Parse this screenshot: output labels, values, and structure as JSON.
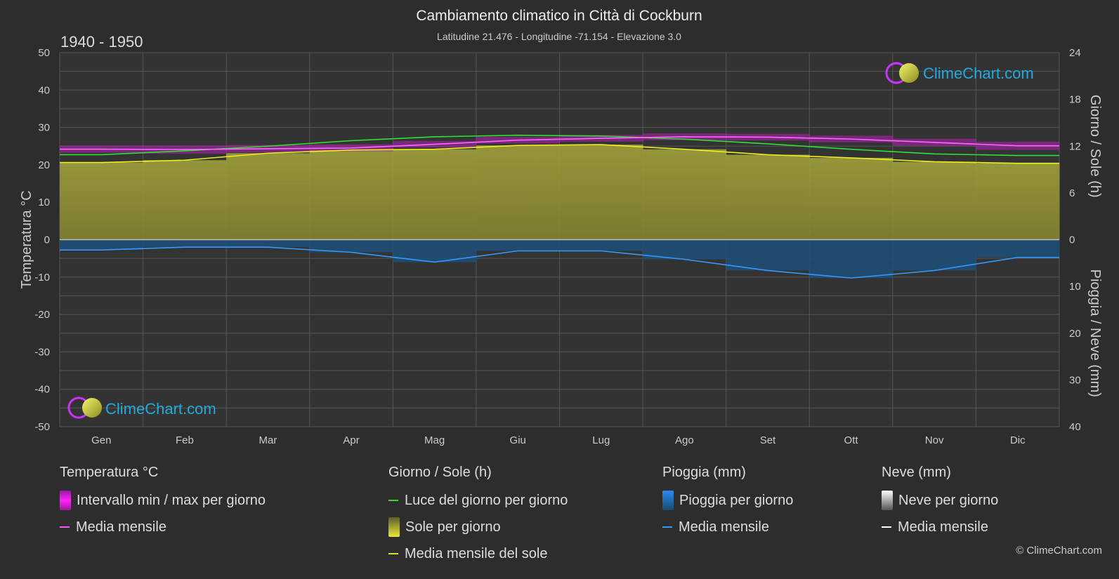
{
  "header": {
    "title": "Cambiamento climatico in Città di Cockburn",
    "subtitle": "Latitudine 21.476 - Longitudine -71.154 - Elevazione 3.0",
    "period": "1940 - 1950"
  },
  "watermark": {
    "text": "ClimeChart.com"
  },
  "copyright": "© ClimeChart.com",
  "chart_data": {
    "type": "area",
    "categories": [
      "Gen",
      "Feb",
      "Mar",
      "Apr",
      "Mag",
      "Giu",
      "Lug",
      "Ago",
      "Set",
      "Ott",
      "Nov",
      "Dic"
    ],
    "axes": {
      "left": {
        "title": "Temperatura °C",
        "ticks": [
          "50",
          "40",
          "30",
          "20",
          "10",
          "0",
          "-10",
          "-20",
          "-30",
          "-40",
          "-50"
        ],
        "range": [
          -50,
          50
        ]
      },
      "right_top": {
        "title": "Giorno / Sole (h)",
        "ticks": [
          "24",
          "18",
          "12",
          "6",
          "0"
        ],
        "range": [
          0,
          24
        ]
      },
      "right_bottom": {
        "title": "Pioggia / Neve (mm)",
        "ticks": [
          "0",
          "10",
          "20",
          "30",
          "40"
        ],
        "range": [
          0,
          40
        ]
      }
    },
    "grid": true,
    "series": [
      {
        "name": "Media mensile",
        "group": "temperature",
        "unit": "°C",
        "color": "#ff55ff",
        "values": [
          24.2,
          24.1,
          24.3,
          24.5,
          25.5,
          26.6,
          27.1,
          27.5,
          27.4,
          26.9,
          26.0,
          25.1
        ]
      },
      {
        "name": "Intervallo min / max per giorno",
        "group": "temperature",
        "unit": "°C",
        "color": "#ee11ee",
        "min": [
          23.2,
          23.0,
          23.3,
          23.6,
          24.6,
          25.7,
          26.2,
          26.6,
          26.5,
          26.0,
          25.0,
          24.0
        ],
        "max": [
          25.2,
          25.2,
          25.3,
          25.5,
          26.4,
          27.5,
          28.0,
          28.4,
          28.3,
          27.8,
          27.0,
          26.2
        ]
      },
      {
        "name": "Luce del giorno per giorno",
        "group": "sun",
        "unit": "h",
        "color": "#33dd33",
        "values": [
          10.9,
          11.4,
          12.0,
          12.7,
          13.2,
          13.4,
          13.3,
          12.9,
          12.3,
          11.6,
          11.0,
          10.8
        ]
      },
      {
        "name": "Sole per giorno",
        "group": "sun",
        "unit": "h",
        "color": "#c8c83a",
        "values": [
          9.9,
          10.2,
          11.1,
          11.5,
          11.6,
          12.1,
          12.2,
          11.6,
          10.9,
          10.5,
          10.0,
          9.8
        ]
      },
      {
        "name": "Media mensile del sole",
        "group": "sun",
        "unit": "h",
        "color": "#dddd22",
        "values": [
          9.9,
          10.2,
          11.1,
          11.5,
          11.6,
          12.1,
          12.2,
          11.6,
          10.9,
          10.5,
          10.0,
          9.8
        ]
      },
      {
        "name": "Pioggia per giorno",
        "group": "rain",
        "unit": "mm",
        "color": "#2a78c8",
        "values": [
          2.2,
          1.6,
          1.6,
          2.7,
          4.8,
          2.4,
          2.4,
          4.2,
          6.6,
          8.2,
          6.6,
          3.8
        ]
      },
      {
        "name": "Media mensile",
        "group": "rain",
        "unit": "mm",
        "color": "#3399ff",
        "values": [
          2.2,
          1.6,
          1.6,
          2.7,
          4.8,
          2.4,
          2.4,
          4.2,
          6.6,
          8.2,
          6.6,
          3.8
        ]
      },
      {
        "name": "Neve per giorno",
        "group": "snow",
        "unit": "mm",
        "color": "#cccccc",
        "values": [
          0,
          0,
          0,
          0,
          0,
          0,
          0,
          0,
          0,
          0,
          0,
          0
        ]
      },
      {
        "name": "Media mensile",
        "group": "snow",
        "unit": "mm",
        "color": "#ffffff",
        "values": [
          0,
          0,
          0,
          0,
          0,
          0,
          0,
          0,
          0,
          0,
          0,
          0
        ]
      }
    ]
  },
  "legend": {
    "temperature": {
      "title": "Temperatura °C",
      "items": [
        "Intervallo min / max per giorno",
        "Media mensile"
      ]
    },
    "sun": {
      "title": "Giorno / Sole (h)",
      "items": [
        "Luce del giorno per giorno",
        "Sole per giorno",
        "Media mensile del sole"
      ]
    },
    "rain": {
      "title": "Pioggia (mm)",
      "items": [
        "Pioggia per giorno",
        "Media mensile"
      ]
    },
    "snow": {
      "title": "Neve (mm)",
      "items": [
        "Neve per giorno",
        "Media mensile"
      ]
    }
  }
}
